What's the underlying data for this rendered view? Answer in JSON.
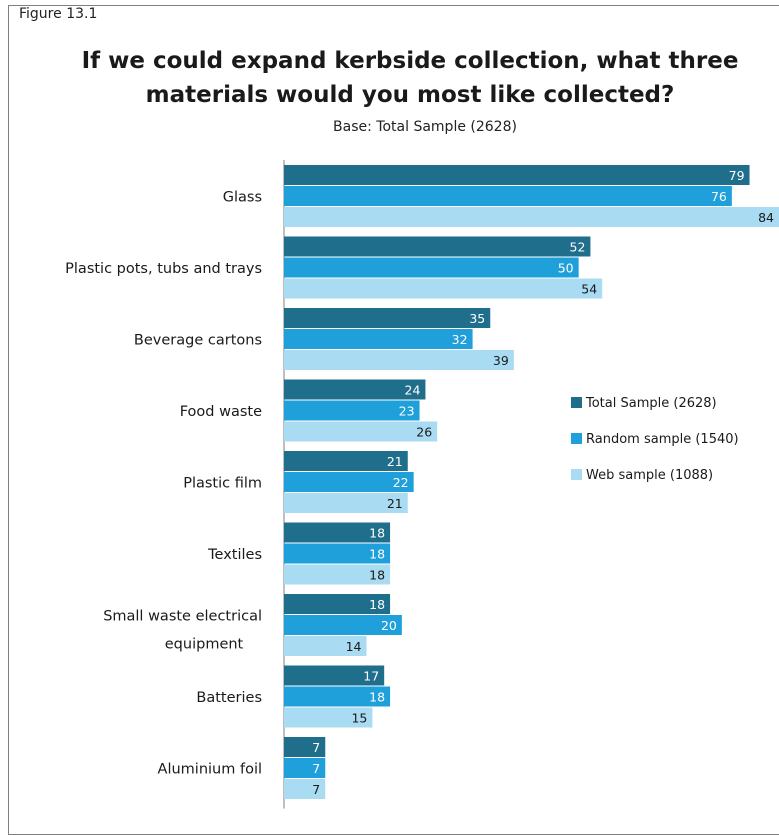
{
  "figure_label": "Figure 13.1",
  "chart_data": {
    "type": "bar",
    "orientation": "horizontal",
    "title": "If we could expand kerbside collection, what three materials would you most like collected?",
    "subtitle": "Base: Total Sample (2628)",
    "categories": [
      "Glass",
      "Plastic pots, tubs and trays",
      "Beverage cartons",
      "Food waste",
      "Plastic film",
      "Textiles",
      "Small waste electrical equipment",
      "Batteries",
      "Aluminium foil"
    ],
    "series": [
      {
        "name": "Total Sample (2628)",
        "color": "#1f6e8c",
        "label_color": "#ffffff",
        "values": [
          79,
          52,
          35,
          24,
          21,
          18,
          18,
          17,
          7
        ]
      },
      {
        "name": "Random sample (1540)",
        "color": "#1fa0da",
        "label_color": "#ffffff",
        "values": [
          76,
          50,
          32,
          23,
          22,
          18,
          20,
          18,
          7
        ]
      },
      {
        "name": "Web sample (1088)",
        "color": "#a9dcf2",
        "label_color": "#1a1a1a",
        "values": [
          84,
          54,
          39,
          26,
          21,
          18,
          14,
          15,
          7
        ]
      }
    ],
    "xlim": [
      0,
      84
    ],
    "grid": false,
    "legend_position": "right"
  }
}
